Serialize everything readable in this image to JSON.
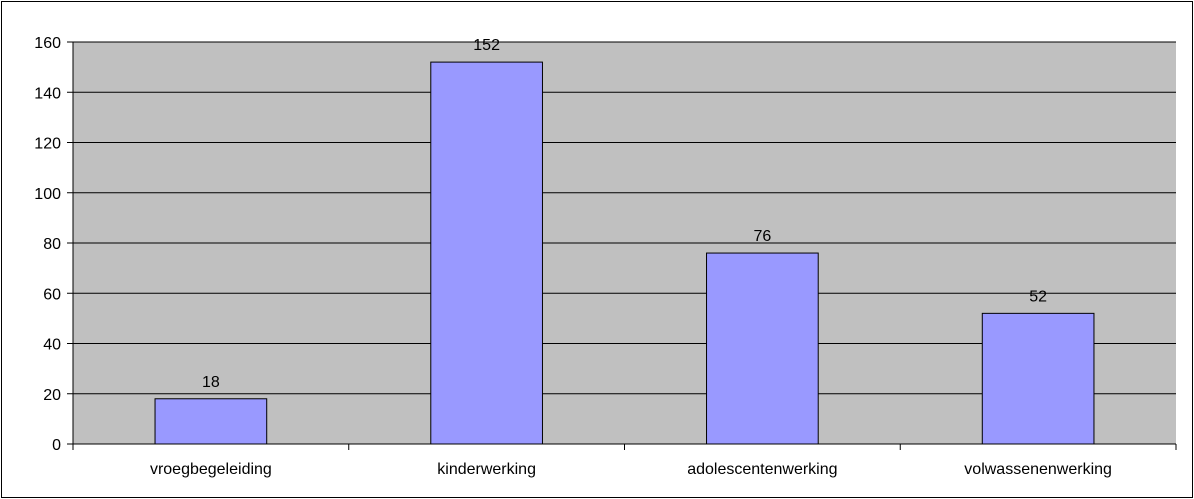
{
  "chart_data": {
    "type": "bar",
    "categories": [
      "vroegbegeleiding",
      "kinderwerking",
      "adolescentenwerking",
      "volwassenenwerking"
    ],
    "values": [
      18,
      152,
      76,
      52
    ],
    "data_labels": [
      "18",
      "152",
      "76",
      "52"
    ],
    "title": "",
    "xlabel": "",
    "ylabel": "",
    "ylim": [
      0,
      160
    ],
    "yticks": [
      0,
      20,
      40,
      60,
      80,
      100,
      120,
      140,
      160
    ],
    "grid": true,
    "legend": "none",
    "colors": {
      "plot_background": "#c0c0c0",
      "bar_fill": "#9999ff",
      "bar_stroke": "#000000",
      "gridline": "#000000"
    }
  }
}
